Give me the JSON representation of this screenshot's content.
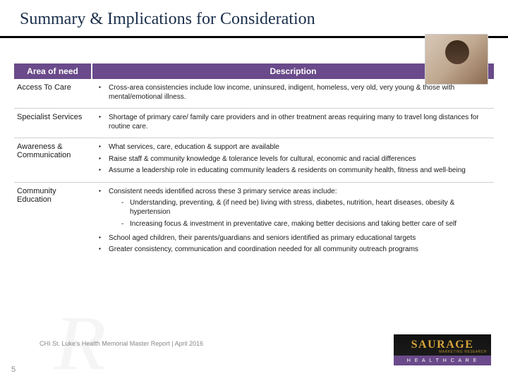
{
  "title": "Summary & Implications for Consideration",
  "header": {
    "area": "Area of need",
    "desc": "Description"
  },
  "rows": [
    {
      "area": "Access To Care",
      "bullets": [
        "Cross-area consistencies include low income, uninsured, indigent, homeless, very old, very young & those with mental/emotional illness."
      ]
    },
    {
      "area": "Specialist Services",
      "bullets": [
        "Shortage of primary care/ family care providers and in other treatment areas requiring many to travel long distances for routine care."
      ]
    },
    {
      "area": "Awareness & Communication",
      "bullets": [
        "What services, care, education & support are available",
        "Raise staff & community knowledge & tolerance levels for cultural, economic and racial differences",
        "Assume a leadership role in educating community leaders & residents on community health, fitness and well-being"
      ]
    },
    {
      "area": "Community Education",
      "bullets": [
        "Consistent needs identified across these 3 primary service areas include:",
        "School aged children, their parents/guardians and seniors identified as primary educational targets",
        "Greater consistency, communication and coordination needed for all community outreach programs"
      ],
      "dashes_after_first": [
        "Understanding, preventing, & (if need be) living with stress, diabetes, nutrition, heart diseases, obesity & hypertension",
        "Increasing focus & investment in preventative care, making better decisions and taking better care of self"
      ]
    }
  ],
  "footer": "CHI St. Luke's Health Memorial Master Report | April 2016",
  "page": "5",
  "logo": {
    "brand": "SAURAGE",
    "tag": "MARKETING RESEARCH",
    "bottom": "H E A L T H C A R E"
  },
  "colors": {
    "title": "#1a2e4a",
    "header_bg": "#6a4a8a",
    "header_fg": "#ffffff",
    "rule": "#000000",
    "logo_gold": "#d8a43a",
    "logo_purple": "#6a4a8a"
  }
}
